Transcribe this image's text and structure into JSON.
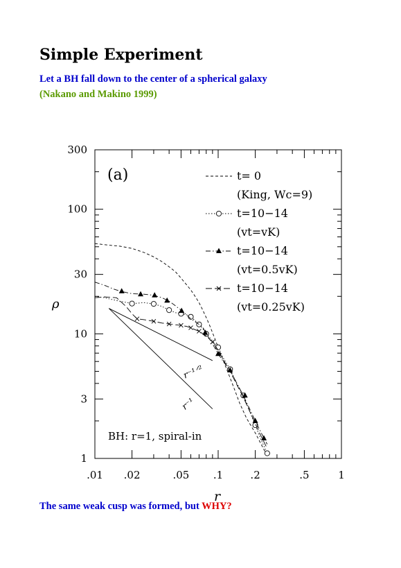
{
  "page": {
    "title": "Simple Experiment",
    "subtitle": "Let a BH fall down to the center of a spherical galaxy",
    "citation": "(Nakano and Makino 1999)",
    "footer_text": "The same weak cusp was formed, but",
    "footer_emphasis": "WHY?",
    "colors": {
      "subtitle": "#0000cc",
      "citation": "#5a9a00",
      "footer": "#0000cc",
      "emphasis": "#dd0000",
      "ink": "#000000"
    }
  },
  "chart_data": {
    "type": "line",
    "panel_label": "(a)",
    "xlabel": "r",
    "ylabel": "ρ",
    "xscale": "log",
    "yscale": "log",
    "xlim": [
      0.01,
      1
    ],
    "ylim": [
      1,
      300
    ],
    "x_ticks": [
      {
        "value": 0.01,
        "label": ".01"
      },
      {
        "value": 0.02,
        "label": ".02"
      },
      {
        "value": 0.05,
        "label": ".05"
      },
      {
        "value": 0.1,
        "label": ".1"
      },
      {
        "value": 0.2,
        "label": ".2"
      },
      {
        "value": 0.5,
        "label": ".5"
      },
      {
        "value": 1,
        "label": "1"
      }
    ],
    "y_ticks": [
      {
        "value": 1,
        "label": "1"
      },
      {
        "value": 3,
        "label": "3"
      },
      {
        "value": 10,
        "label": "10"
      },
      {
        "value": 30,
        "label": "30"
      },
      {
        "value": 100,
        "label": "100"
      },
      {
        "value": 300,
        "label": "300"
      }
    ],
    "legend_placement": "top-right",
    "annotation": "BH: r=1, spiral-in",
    "series": [
      {
        "name": "t= 0",
        "note": "(King, Wc=9)",
        "style": "dashed",
        "marker": "none",
        "x": [
          0.01,
          0.013,
          0.016,
          0.02,
          0.025,
          0.03,
          0.035,
          0.04,
          0.045,
          0.05,
          0.055,
          0.06,
          0.065,
          0.07,
          0.075,
          0.08,
          0.085,
          0.09,
          0.1,
          0.11,
          0.12,
          0.13,
          0.14,
          0.15,
          0.17,
          0.2,
          0.25
        ],
        "y": [
          53,
          51.5,
          50.5,
          48.5,
          45,
          41.5,
          38,
          34.5,
          31.5,
          28,
          25,
          22.5,
          20,
          17.8,
          15.5,
          13.5,
          11.8,
          10.2,
          7.8,
          6.1,
          4.9,
          4.0,
          3.3,
          2.75,
          2.1,
          1.6,
          1.05
        ]
      },
      {
        "name": "t=10−14",
        "note": "(vt=vK)",
        "style": "dotted",
        "marker": "circle",
        "x": [
          0.01,
          0.012,
          0.015,
          0.02,
          0.025,
          0.03,
          0.035,
          0.04,
          0.045,
          0.05,
          0.055,
          0.06,
          0.065,
          0.07,
          0.075,
          0.08,
          0.09,
          0.1,
          0.11,
          0.125,
          0.14,
          0.16,
          0.18,
          0.2,
          0.22,
          0.25
        ],
        "y": [
          20,
          19.5,
          18.5,
          17.5,
          17.8,
          17.4,
          16.6,
          15.5,
          14.8,
          14.5,
          14.3,
          13.7,
          12.8,
          11.9,
          11.0,
          10.0,
          8.8,
          7.8,
          6.4,
          5.2,
          4.1,
          3.2,
          2.4,
          1.85,
          1.45,
          1.1
        ],
        "markers_x": [
          0.02,
          0.03,
          0.04,
          0.05,
          0.06,
          0.07,
          0.08,
          0.1,
          0.125,
          0.16,
          0.2,
          0.25
        ],
        "markers_y": [
          17.5,
          17.4,
          15.5,
          14.5,
          13.7,
          11.9,
          10.0,
          7.8,
          5.2,
          3.2,
          1.85,
          1.1
        ]
      },
      {
        "name": "t=10−14",
        "note": "(vt=0.5vK)",
        "style": "dashdot",
        "marker": "triangle",
        "x": [
          0.01,
          0.012,
          0.014,
          0.016,
          0.02,
          0.025,
          0.03,
          0.035,
          0.04,
          0.045,
          0.05,
          0.055,
          0.06,
          0.065,
          0.07,
          0.075,
          0.08,
          0.09,
          0.1,
          0.11,
          0.125,
          0.14,
          0.16,
          0.18,
          0.2,
          0.22,
          0.25
        ],
        "y": [
          26,
          24.5,
          23,
          22,
          21,
          20.8,
          20.4,
          19.5,
          18.3,
          16.8,
          15.5,
          14.3,
          13.2,
          12.5,
          11.9,
          11.3,
          10.0,
          8.3,
          6.9,
          6.0,
          5.1,
          4.1,
          3.2,
          2.5,
          2.0,
          1.65,
          1.3
        ],
        "markers_x": [
          0.0165,
          0.0235,
          0.0305,
          0.0385,
          0.0505,
          0.0785,
          0.1,
          0.125,
          0.165,
          0.2,
          0.235
        ],
        "markers_y": [
          22,
          20.8,
          20.4,
          18.5,
          15.3,
          10.2,
          6.9,
          5.1,
          3.2,
          2.0,
          1.45
        ]
      },
      {
        "name": "t=10−14",
        "note": "(vt=0.25vK)",
        "style": "longdash",
        "marker": "cross",
        "x": [
          0.01,
          0.012,
          0.015,
          0.018,
          0.02,
          0.022,
          0.025,
          0.03,
          0.035,
          0.04,
          0.045,
          0.05,
          0.055,
          0.06,
          0.065,
          0.07,
          0.08,
          0.09,
          0.1,
          0.11,
          0.125,
          0.14,
          0.16,
          0.18,
          0.2,
          0.22,
          0.25
        ],
        "y": [
          19.5,
          19.8,
          19.5,
          16.5,
          14.5,
          13.2,
          13.0,
          12.6,
          12.2,
          12.0,
          11.8,
          11.7,
          11.5,
          11.2,
          10.8,
          10.5,
          9.6,
          8.6,
          7.4,
          6.2,
          5.0,
          4.0,
          3.1,
          2.4,
          1.9,
          1.55,
          1.2
        ],
        "markers_x": [
          0.022,
          0.03,
          0.04,
          0.05,
          0.06,
          0.07,
          0.09
        ],
        "markers_y": [
          13.2,
          12.6,
          12.0,
          11.7,
          11.2,
          10.5,
          8.6
        ]
      }
    ],
    "reference_lines": [
      {
        "label": "r⁻¹ᐟ²",
        "slope": -0.5,
        "x": [
          0.013,
          0.09
        ],
        "y": [
          16,
          6.1
        ]
      },
      {
        "label": "r⁻¹",
        "slope": -1,
        "x": [
          0.013,
          0.09
        ],
        "y": [
          16,
          2.5
        ]
      }
    ]
  }
}
